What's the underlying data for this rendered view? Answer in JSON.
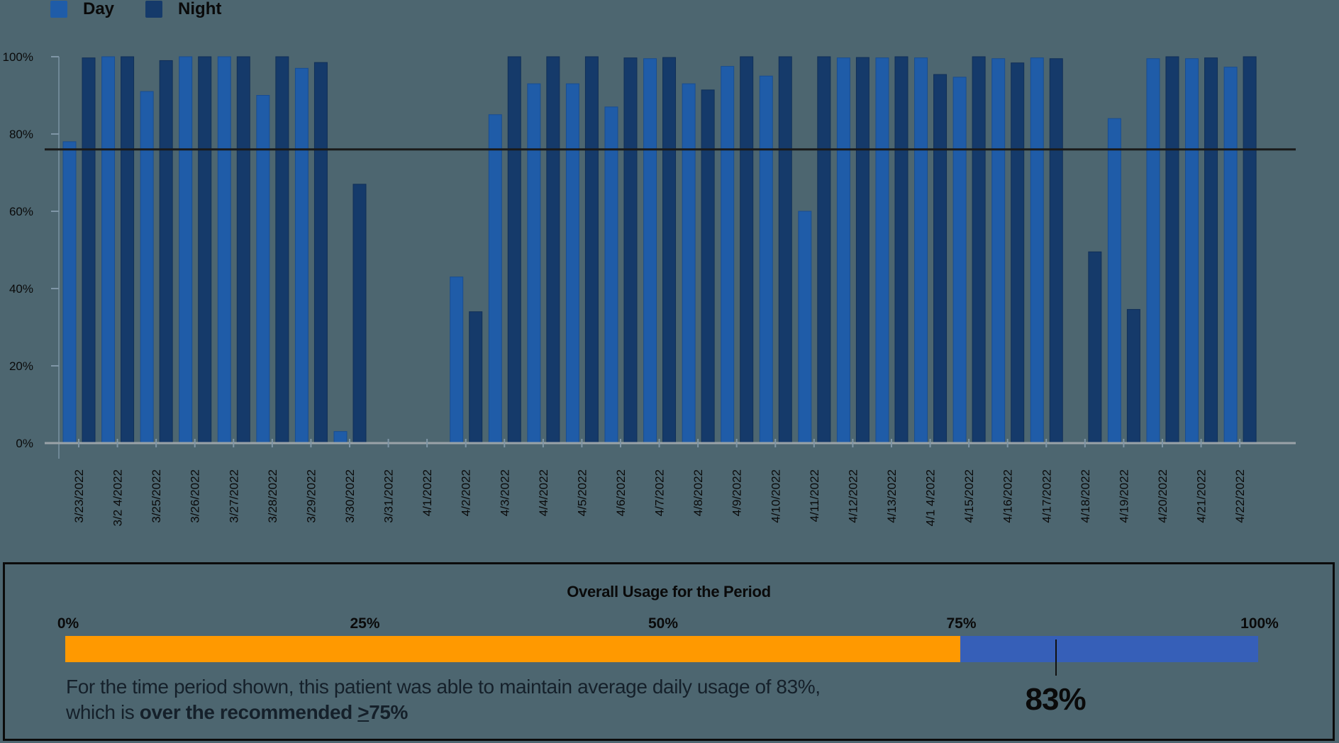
{
  "legend": {
    "day_label": "Day",
    "night_label": "Night",
    "day_color": "#1f5ca8",
    "night_color": "#153a6a"
  },
  "chart_data": {
    "type": "bar",
    "title": "",
    "xlabel": "",
    "ylabel": "",
    "ylim": [
      0,
      100
    ],
    "yticks": [
      "0%",
      "20%",
      "40%",
      "60%",
      "80%",
      "100%"
    ],
    "threshold_line": 76,
    "grid": false,
    "legend_position": "top-left",
    "categories": [
      "3/23/2022",
      "3/2 4/2022",
      "3/25/2022",
      "3/26/2022",
      "3/27/2022",
      "3/28/2022",
      "3/29/2022",
      "3/30/2022",
      "3/31/2022",
      "4/1/2022",
      "4/2/2022",
      "4/3/2022",
      "4/4/2022",
      "4/5/2022",
      "4/6/2022",
      "4/7/2022",
      "4/8/2022",
      "4/9/2022",
      "4/10/2022",
      "4/11/2022",
      "4/12/2022",
      "4/13/2022",
      "4/1 4/2022",
      "4/15/2022",
      "4/16/2022",
      "4/17/2022",
      "4/18/2022",
      "4/19/2022",
      "4/20/2022",
      "4/21/2022",
      "4/22/2022"
    ],
    "series": [
      {
        "name": "Day",
        "color": "#1f5ca8",
        "values": [
          78,
          100,
          91,
          100,
          100,
          90,
          97,
          3,
          0,
          0,
          43,
          85,
          93,
          93,
          87,
          99.5,
          93,
          97.5,
          95,
          60,
          99.7,
          99.7,
          99.7,
          94.7,
          99.5,
          99.7,
          0,
          84,
          99.5,
          99.5,
          97.3
        ]
      },
      {
        "name": "Night",
        "color": "#153a6a",
        "values": [
          99.7,
          100,
          99,
          100,
          100,
          100,
          98.5,
          67,
          0,
          0,
          34,
          100,
          100,
          100,
          99.7,
          99.8,
          91.4,
          100,
          100,
          100,
          99.8,
          100,
          95.4,
          100,
          98.4,
          99.5,
          49.5,
          34.6,
          100,
          99.7,
          100
        ]
      }
    ]
  },
  "summary_panel": {
    "title": "Overall Usage for the Period",
    "scale_labels": [
      "0%",
      "25%",
      "50%",
      "75%",
      "100%"
    ],
    "below_target_color": "#ff9900",
    "above_target_color": "#365fb8",
    "target_percent": 75,
    "value_percent": 83,
    "value_label": "83%",
    "text_line1": "For the time period shown, this patient was able to maintain average daily usage of 83%,",
    "text_line2_prefix": "which is ",
    "text_line2_bold": "over the recommended ",
    "text_line2_ge": ">",
    "text_line2_tail": "75%"
  }
}
